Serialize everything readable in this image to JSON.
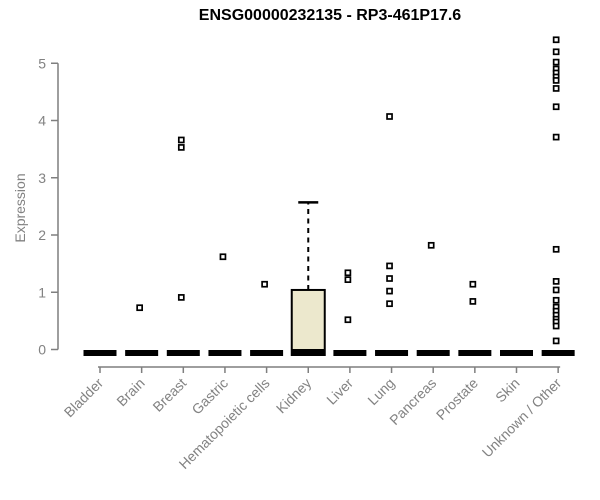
{
  "chart_data": {
    "type": "boxplot",
    "title": "ENSG00000232135 - RP3-461P17.6",
    "ylabel": "Expression",
    "xlabel": "",
    "yticks": [
      0,
      1,
      2,
      3,
      4,
      5
    ],
    "ylim": [
      0,
      5.45
    ],
    "grid": false,
    "legend": null,
    "categories": [
      "Bladder",
      "Brain",
      "Breast",
      "Gastric",
      "Hematopoietic cells",
      "Kidney",
      "Liver",
      "Lung",
      "Pancreas",
      "Prostate",
      "Skin",
      "Unknown / Other"
    ],
    "boxes": [
      {
        "category": "Bladder",
        "median": 0,
        "q1": 0,
        "q3": 0,
        "whisker_low": 0,
        "whisker_high": 0,
        "outliers": []
      },
      {
        "category": "Brain",
        "median": 0,
        "q1": 0,
        "q3": 0,
        "whisker_low": 0,
        "whisker_high": 0,
        "outliers": [
          0.73
        ]
      },
      {
        "category": "Breast",
        "median": 0,
        "q1": 0,
        "q3": 0,
        "whisker_low": 0,
        "whisker_high": 0,
        "outliers": [
          3.66,
          3.53,
          0.91
        ]
      },
      {
        "category": "Gastric",
        "median": 0,
        "q1": 0,
        "q3": 0,
        "whisker_low": 0,
        "whisker_high": 0,
        "outliers": [
          1.62
        ]
      },
      {
        "category": "Hematopoietic cells",
        "median": 0,
        "q1": 0,
        "q3": 0,
        "whisker_low": 0,
        "whisker_high": 0,
        "outliers": [
          1.14
        ]
      },
      {
        "category": "Kidney",
        "median": 0,
        "q1": 0,
        "q3": 1.04,
        "whisker_low": 0,
        "whisker_high": 2.57,
        "outliers": []
      },
      {
        "category": "Liver",
        "median": 0,
        "q1": 0,
        "q3": 0,
        "whisker_low": 0,
        "whisker_high": 0,
        "outliers": [
          1.34,
          1.22,
          0.52
        ]
      },
      {
        "category": "Lung",
        "median": 0,
        "q1": 0,
        "q3": 0,
        "whisker_low": 0,
        "whisker_high": 0,
        "outliers": [
          4.07,
          1.46,
          1.24,
          1.02,
          0.8
        ]
      },
      {
        "category": "Pancreas",
        "median": 0,
        "q1": 0,
        "q3": 0,
        "whisker_low": 0,
        "whisker_high": 0,
        "outliers": [
          1.82
        ]
      },
      {
        "category": "Prostate",
        "median": 0,
        "q1": 0,
        "q3": 0,
        "whisker_low": 0,
        "whisker_high": 0,
        "outliers": [
          1.14,
          0.84
        ]
      },
      {
        "category": "Skin",
        "median": 0,
        "q1": 0,
        "q3": 0,
        "whisker_low": 0,
        "whisker_high": 0,
        "outliers": []
      },
      {
        "category": "Unknown / Other",
        "median": 0,
        "q1": 0,
        "q3": 0,
        "whisker_low": 0,
        "whisker_high": 0,
        "outliers": [
          5.41,
          5.2,
          5.02,
          4.9,
          4.83,
          4.76,
          4.7,
          4.56,
          4.24,
          3.71,
          1.75,
          1.19,
          1.04,
          0.86,
          0.74,
          0.67,
          0.6,
          0.53,
          0.48,
          0.41,
          0.15
        ]
      }
    ],
    "colors": {
      "background": "#ffffff",
      "box_fill": "#ece8cd",
      "box_stroke": "#000000",
      "median_color": "#000000",
      "whisker_color": "#000000",
      "outlier_fill": "#ffffff",
      "outlier_stroke": "#000000",
      "axis_color": "#7f7f7f",
      "label_color": "#828282",
      "title_color": "#000000"
    }
  }
}
